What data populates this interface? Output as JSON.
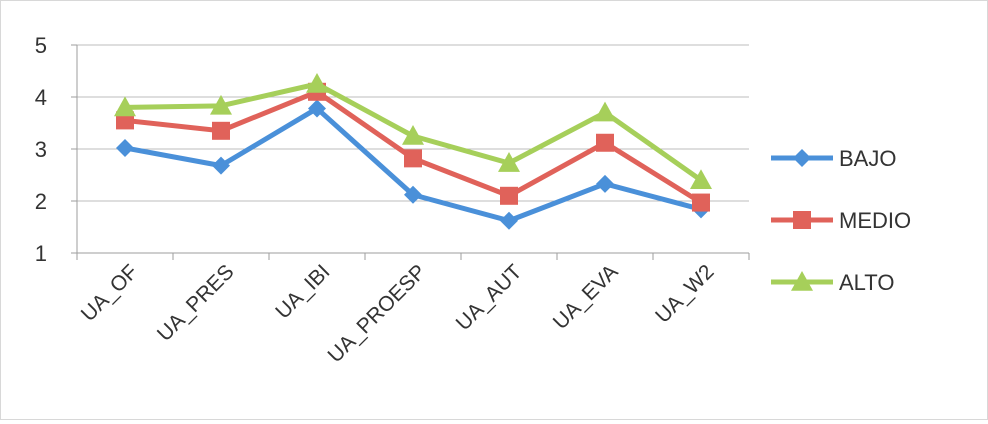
{
  "chart_data": {
    "type": "line",
    "categories": [
      "UA_OF",
      "UA_PRES",
      "UA_IBI",
      "UA_PROESP",
      "UA_AUT",
      "UA_EVA",
      "UA_W2"
    ],
    "series": [
      {
        "name": "BAJO",
        "color": "#4a90d9",
        "marker": "diamond",
        "values": [
          3.02,
          2.68,
          3.78,
          2.12,
          1.62,
          2.33,
          1.84
        ]
      },
      {
        "name": "MEDIO",
        "color": "#e0625a",
        "marker": "square",
        "values": [
          3.55,
          3.35,
          4.1,
          2.82,
          2.1,
          3.12,
          1.97
        ]
      },
      {
        "name": "ALTO",
        "color": "#a6cf5a",
        "marker": "triangle",
        "values": [
          3.8,
          3.83,
          4.25,
          3.25,
          2.73,
          3.7,
          2.4
        ]
      }
    ],
    "ylim": [
      1,
      5
    ],
    "yticks": [
      "1",
      "2",
      "3",
      "4",
      "5"
    ],
    "grid": true,
    "legend_position": "right",
    "title": "",
    "xlabel": "",
    "ylabel": ""
  }
}
